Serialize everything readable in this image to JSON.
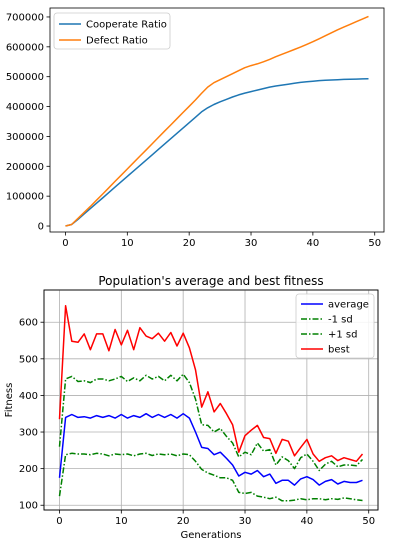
{
  "chart_data": [
    {
      "type": "line",
      "title": "",
      "xlabel": "",
      "ylabel": "",
      "xlim": [
        -2.5,
        51.5
      ],
      "ylim": [
        -20000,
        730000
      ],
      "xticks": [
        0,
        10,
        20,
        30,
        40,
        50
      ],
      "yticks": [
        0,
        100000,
        200000,
        300000,
        400000,
        500000,
        600000,
        700000
      ],
      "xtick_labels": [
        "0",
        "10",
        "20",
        "30",
        "40",
        "50"
      ],
      "ytick_labels": [
        "0",
        "100000",
        "200000",
        "300000",
        "400000",
        "500000",
        "600000",
        "700000"
      ],
      "grid": false,
      "legend_position": "upper-left",
      "series": [
        {
          "name": "Cooperate Ratio",
          "color": "#1f77b4",
          "x": [
            0,
            1,
            2,
            3,
            4,
            5,
            6,
            7,
            8,
            9,
            10,
            11,
            12,
            13,
            14,
            15,
            16,
            17,
            18,
            19,
            20,
            21,
            22,
            23,
            24,
            25,
            26,
            27,
            28,
            29,
            30,
            31,
            32,
            33,
            34,
            35,
            36,
            37,
            38,
            39,
            40,
            41,
            42,
            43,
            44,
            45,
            46,
            47,
            48,
            49
          ],
          "y": [
            0,
            5000,
            22000,
            40000,
            58000,
            76000,
            94000,
            112000,
            130000,
            148000,
            166000,
            184000,
            202000,
            220000,
            238000,
            256000,
            274000,
            292000,
            310000,
            328000,
            346000,
            364000,
            382000,
            396000,
            407000,
            416000,
            424000,
            432000,
            439000,
            445000,
            450000,
            455000,
            460000,
            465000,
            469000,
            472000,
            475000,
            478000,
            481000,
            483000,
            485000,
            487000,
            488000,
            489000,
            490000,
            491000,
            491500,
            492000,
            492500,
            493000
          ]
        },
        {
          "name": "Defect Ratio",
          "color": "#ff7f0e",
          "x": [
            0,
            1,
            2,
            3,
            4,
            5,
            6,
            7,
            8,
            9,
            10,
            11,
            12,
            13,
            14,
            15,
            16,
            17,
            18,
            19,
            20,
            21,
            22,
            23,
            24,
            25,
            26,
            27,
            28,
            29,
            30,
            31,
            32,
            33,
            34,
            35,
            36,
            37,
            38,
            39,
            40,
            41,
            42,
            43,
            44,
            45,
            46,
            47,
            48,
            49
          ],
          "y": [
            0,
            5000,
            25000,
            45000,
            65000,
            86000,
            107000,
            128000,
            149000,
            170000,
            191000,
            212000,
            233000,
            254000,
            275000,
            296000,
            317000,
            338000,
            359000,
            380000,
            401000,
            422000,
            444000,
            465000,
            480000,
            490000,
            500000,
            510000,
            520000,
            530000,
            537000,
            543000,
            550000,
            558000,
            567000,
            575000,
            583000,
            591000,
            599000,
            608000,
            617000,
            627000,
            637000,
            647000,
            657000,
            666000,
            675000,
            684000,
            693000,
            702000
          ]
        }
      ]
    },
    {
      "type": "line",
      "title": "Population's average and best fitness",
      "xlabel": "Generations",
      "ylabel": "Fitness",
      "xlim": [
        -2.5,
        51.5
      ],
      "ylim": [
        87,
        688
      ],
      "xticks": [
        0,
        10,
        20,
        30,
        40,
        50
      ],
      "yticks": [
        100,
        200,
        300,
        400,
        500,
        600
      ],
      "xtick_labels": [
        "0",
        "10",
        "20",
        "30",
        "40",
        "50"
      ],
      "ytick_labels": [
        "100",
        "200",
        "300",
        "400",
        "500",
        "600"
      ],
      "grid": true,
      "legend_position": "upper-right",
      "series": [
        {
          "name": "average",
          "color": "#0000ff",
          "style": "solid",
          "x": [
            0,
            1,
            2,
            3,
            4,
            5,
            6,
            7,
            8,
            9,
            10,
            11,
            12,
            13,
            14,
            15,
            16,
            17,
            18,
            19,
            20,
            21,
            22,
            23,
            24,
            25,
            26,
            27,
            28,
            29,
            30,
            31,
            32,
            33,
            34,
            35,
            36,
            37,
            38,
            39,
            40,
            41,
            42,
            43,
            44,
            45,
            46,
            47,
            48,
            49
          ],
          "y": [
            175,
            340,
            348,
            340,
            342,
            338,
            345,
            340,
            345,
            338,
            348,
            338,
            345,
            340,
            350,
            340,
            348,
            340,
            348,
            338,
            350,
            338,
            300,
            258,
            255,
            238,
            245,
            228,
            210,
            180,
            190,
            185,
            195,
            178,
            185,
            160,
            168,
            168,
            155,
            172,
            178,
            170,
            155,
            165,
            170,
            158,
            165,
            162,
            162,
            168
          ]
        },
        {
          "name": "-1 sd",
          "color": "#008000",
          "style": "dashdot",
          "x": [
            0,
            1,
            2,
            3,
            4,
            5,
            6,
            7,
            8,
            9,
            10,
            11,
            12,
            13,
            14,
            15,
            16,
            17,
            18,
            19,
            20,
            21,
            22,
            23,
            24,
            25,
            26,
            27,
            28,
            29,
            30,
            31,
            32,
            33,
            34,
            35,
            36,
            37,
            38,
            39,
            40,
            41,
            42,
            43,
            44,
            45,
            46,
            47,
            48,
            49
          ],
          "y": [
            125,
            238,
            242,
            240,
            240,
            238,
            242,
            240,
            235,
            240,
            238,
            240,
            235,
            240,
            242,
            236,
            240,
            238,
            240,
            235,
            240,
            238,
            220,
            198,
            188,
            182,
            175,
            175,
            168,
            135,
            132,
            135,
            125,
            122,
            118,
            122,
            112,
            112,
            114,
            118,
            115,
            118,
            118,
            115,
            118,
            116,
            120,
            118,
            115,
            113
          ]
        },
        {
          "name": "+1 sd",
          "color": "#008000",
          "style": "dashdot",
          "x": [
            0,
            1,
            2,
            3,
            4,
            5,
            6,
            7,
            8,
            9,
            10,
            11,
            12,
            13,
            14,
            15,
            16,
            17,
            18,
            19,
            20,
            21,
            22,
            23,
            24,
            25,
            26,
            27,
            28,
            29,
            30,
            31,
            32,
            33,
            34,
            35,
            36,
            37,
            38,
            39,
            40,
            41,
            42,
            43,
            44,
            45,
            46,
            47,
            48,
            49
          ],
          "y": [
            260,
            445,
            452,
            438,
            440,
            435,
            445,
            445,
            440,
            445,
            452,
            438,
            448,
            440,
            455,
            445,
            452,
            440,
            455,
            440,
            458,
            435,
            390,
            320,
            318,
            300,
            310,
            288,
            270,
            232,
            245,
            238,
            270,
            248,
            252,
            210,
            232,
            222,
            200,
            230,
            240,
            220,
            195,
            212,
            220,
            205,
            210,
            210,
            208,
            225
          ]
        },
        {
          "name": "best",
          "color": "#ff0000",
          "style": "solid",
          "x": [
            0,
            1,
            2,
            3,
            4,
            5,
            6,
            7,
            8,
            9,
            10,
            11,
            12,
            13,
            14,
            15,
            16,
            17,
            18,
            19,
            20,
            21,
            22,
            23,
            24,
            25,
            26,
            27,
            28,
            29,
            30,
            31,
            32,
            33,
            34,
            35,
            36,
            37,
            38,
            39,
            40,
            41,
            42,
            43,
            44,
            45,
            46,
            47,
            48,
            49
          ],
          "y": [
            335,
            645,
            548,
            545,
            568,
            525,
            568,
            568,
            522,
            580,
            538,
            578,
            525,
            585,
            562,
            555,
            570,
            548,
            572,
            535,
            570,
            530,
            470,
            368,
            410,
            355,
            378,
            350,
            320,
            245,
            290,
            305,
            318,
            285,
            282,
            242,
            280,
            275,
            235,
            258,
            280,
            240,
            220,
            230,
            235,
            222,
            230,
            225,
            220,
            240
          ]
        }
      ]
    }
  ]
}
